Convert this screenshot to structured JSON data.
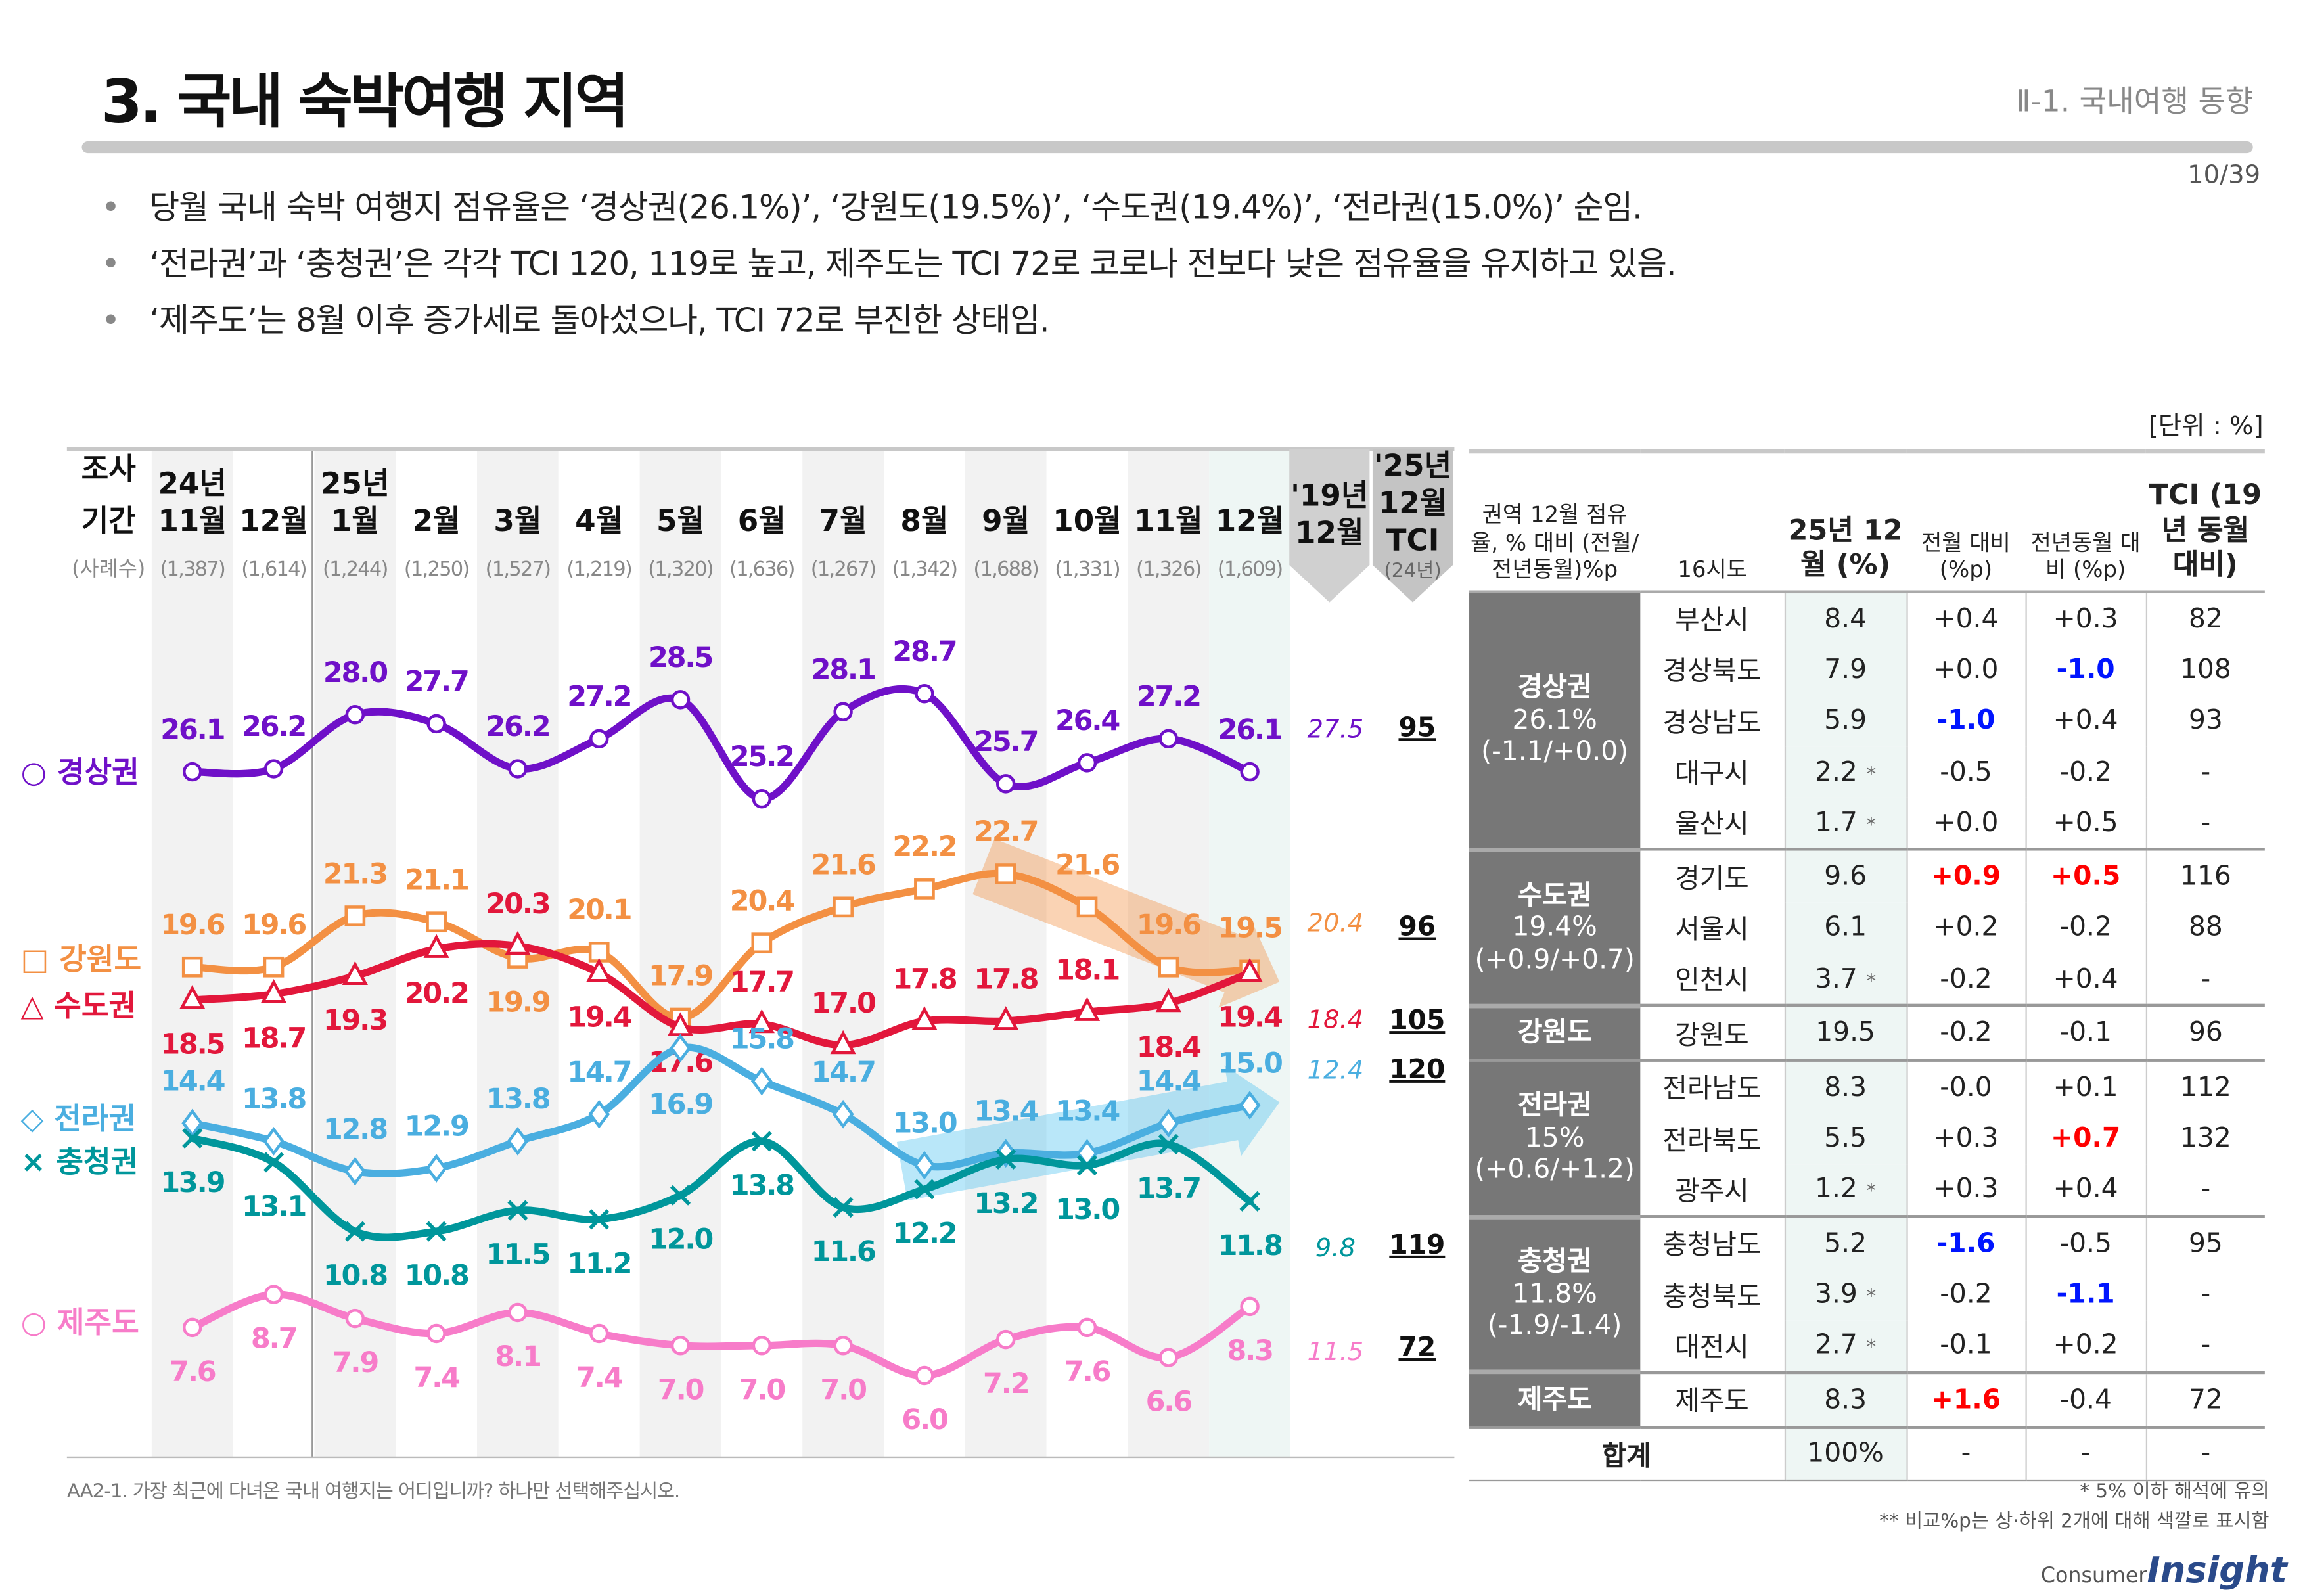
{
  "header": {
    "title": "3. 국내 숙박여행 지역",
    "section": "Ⅱ-1. 국내여행 동향",
    "page": "10/39"
  },
  "bullets": [
    "당월 국내 숙박 여행지 점유율은 ‘경상권(26.1%)’, ‘강원도(19.5%)’, ‘수도권(19.4%)’, ‘전라권(15.0%)’ 순임.",
    "‘전라권’과 ‘충청권’은 각각 TCI 120, 119로 높고, 제주도는 TCI 72로 코로나 전보다 낮은 점유율을 유지하고 있음.",
    "‘제주도’는 8월 이후 증가세로 돌아섰으나, TCI 72로 부진한 상태임."
  ],
  "unit": "[단위 : %]",
  "chart_data": {
    "type": "line",
    "period_label_1": "조사",
    "period_label_2": "기간",
    "sample_label": "(사례수)",
    "year_labels": [
      {
        "col": 0,
        "text": "24년"
      },
      {
        "col": 2,
        "text": "25년"
      }
    ],
    "categories": [
      "11월",
      "12월",
      "1월",
      "2월",
      "3월",
      "4월",
      "5월",
      "6월",
      "7월",
      "8월",
      "9월",
      "10월",
      "11월",
      "12월"
    ],
    "sample_sizes": [
      "(1,387)",
      "(1,614)",
      "(1,244)",
      "(1,250)",
      "(1,527)",
      "(1,219)",
      "(1,320)",
      "(1,636)",
      "(1,267)",
      "(1,342)",
      "(1,688)",
      "(1,331)",
      "(1,326)",
      "(1,609)"
    ],
    "ref_col_label": [
      "'19년",
      "12월"
    ],
    "tci_col_label": [
      "'25년",
      "12월",
      "TCI"
    ],
    "tci_col_note": "(24년)",
    "series": [
      {
        "name": "경상권",
        "symbol": "○",
        "marker": "circle",
        "color": "#6f10c8",
        "values": [
          26.1,
          26.2,
          28.0,
          27.7,
          26.2,
          27.2,
          28.5,
          25.2,
          28.1,
          28.7,
          25.7,
          26.4,
          27.2,
          26.1
        ],
        "ref_2019": "27.5",
        "tci": "95"
      },
      {
        "name": "강원도",
        "symbol": "□",
        "marker": "square",
        "color": "#f39043",
        "values": [
          19.6,
          19.6,
          21.3,
          21.1,
          19.9,
          20.1,
          17.9,
          20.4,
          21.6,
          22.2,
          22.7,
          21.6,
          19.6,
          19.5
        ],
        "ref_2019": "20.4",
        "tci": "96"
      },
      {
        "name": "수도권",
        "symbol": "△",
        "marker": "triangle",
        "color": "#e2173b",
        "values": [
          18.5,
          18.7,
          19.3,
          20.2,
          20.3,
          19.4,
          17.6,
          17.7,
          17.0,
          17.8,
          17.8,
          18.1,
          18.4,
          19.4
        ],
        "ref_2019": "18.4",
        "tci": "105"
      },
      {
        "name": "전라권",
        "symbol": "◇",
        "marker": "diamond",
        "color": "#4aaee0",
        "values": [
          14.4,
          13.8,
          12.8,
          12.9,
          13.8,
          14.7,
          16.9,
          15.8,
          14.7,
          13.0,
          13.4,
          13.4,
          14.4,
          15.0
        ],
        "ref_2019": "12.4",
        "tci": "120"
      },
      {
        "name": "충청권",
        "symbol": "×",
        "marker": "x",
        "color": "#00969b",
        "values": [
          13.9,
          13.1,
          10.8,
          10.8,
          11.5,
          11.2,
          12.0,
          13.8,
          11.6,
          12.2,
          13.2,
          13.0,
          13.7,
          11.8
        ],
        "ref_2019": "9.8",
        "tci": "119"
      },
      {
        "name": "제주도",
        "symbol": "○",
        "marker": "circle",
        "color": "#f77cc9",
        "values": [
          7.6,
          8.7,
          7.9,
          7.4,
          8.1,
          7.4,
          7.0,
          7.0,
          7.0,
          6.0,
          7.2,
          7.6,
          6.6,
          8.3
        ],
        "ref_2019": "11.5",
        "tci": "72"
      }
    ],
    "trend_arrows": [
      {
        "series": "강원도",
        "from": "9월",
        "to": "12월",
        "direction": "down",
        "color": "#f39043"
      },
      {
        "series": "전라권",
        "from": "8월",
        "to": "12월",
        "direction": "up",
        "color": "#4fc3f0"
      }
    ]
  },
  "table": {
    "headers": [
      "권역 12월 점유율, % 대비 (전월/ 전년동월)%p",
      "16시도",
      "25년 12월 (%)",
      "전월 대비 (%p)",
      "전년동월 대비 (%p)",
      "TCI (19년 동월 대비)"
    ],
    "groups": [
      {
        "label": [
          "경상권",
          "26.1%",
          "(-1.1/+0.0)"
        ],
        "rows": [
          {
            "city": "부산시",
            "share": "8.4",
            "star": "",
            "mom": "+0.4",
            "yoy": "+0.3",
            "tci": "82"
          },
          {
            "city": "경상북도",
            "share": "7.9",
            "star": "",
            "mom": "+0.0",
            "yoy": "-1.0",
            "yoy_hl": "blue",
            "tci": "108"
          },
          {
            "city": "경상남도",
            "share": "5.9",
            "star": "",
            "mom": "-1.0",
            "mom_hl": "blue",
            "yoy": "+0.4",
            "tci": "93"
          },
          {
            "city": "대구시",
            "share": "2.2",
            "star": "*",
            "mom": "-0.5",
            "yoy": "-0.2",
            "tci": "-"
          },
          {
            "city": "울산시",
            "share": "1.7",
            "star": "*",
            "mom": "+0.0",
            "yoy": "+0.5",
            "tci": "-"
          }
        ]
      },
      {
        "label": [
          "수도권",
          "19.4%",
          "(+0.9/+0.7)"
        ],
        "rows": [
          {
            "city": "경기도",
            "share": "9.6",
            "star": "",
            "mom": "+0.9",
            "mom_hl": "red",
            "yoy": "+0.5",
            "yoy_hl": "red",
            "tci": "116"
          },
          {
            "city": "서울시",
            "share": "6.1",
            "star": "",
            "mom": "+0.2",
            "yoy": "-0.2",
            "tci": "88"
          },
          {
            "city": "인천시",
            "share": "3.7",
            "star": "*",
            "mom": "-0.2",
            "yoy": "+0.4",
            "tci": "-"
          }
        ]
      },
      {
        "label": [
          "강원도"
        ],
        "rows": [
          {
            "city": "강원도",
            "share": "19.5",
            "star": "",
            "mom": "-0.2",
            "yoy": "-0.1",
            "tci": "96"
          }
        ]
      },
      {
        "label": [
          "전라권",
          "15%",
          "(+0.6/+1.2)"
        ],
        "rows": [
          {
            "city": "전라남도",
            "share": "8.3",
            "star": "",
            "mom": "-0.0",
            "yoy": "+0.1",
            "tci": "112"
          },
          {
            "city": "전라북도",
            "share": "5.5",
            "star": "",
            "mom": "+0.3",
            "yoy": "+0.7",
            "yoy_hl": "red",
            "tci": "132"
          },
          {
            "city": "광주시",
            "share": "1.2",
            "star": "*",
            "mom": "+0.3",
            "yoy": "+0.4",
            "tci": "-"
          }
        ]
      },
      {
        "label": [
          "충청권",
          "11.8%",
          "(-1.9/-1.4)"
        ],
        "rows": [
          {
            "city": "충청남도",
            "share": "5.2",
            "star": "",
            "mom": "-1.6",
            "mom_hl": "blue",
            "yoy": "-0.5",
            "tci": "95"
          },
          {
            "city": "충청북도",
            "share": "3.9",
            "star": "*",
            "mom": "-0.2",
            "yoy": "-1.1",
            "yoy_hl": "blue",
            "tci": "-"
          },
          {
            "city": "대전시",
            "share": "2.7",
            "star": "*",
            "mom": "-0.1",
            "yoy": "+0.2",
            "tci": "-"
          }
        ]
      },
      {
        "label": [
          "제주도"
        ],
        "rows": [
          {
            "city": "제주도",
            "share": "8.3",
            "star": "",
            "mom": "+1.6",
            "mom_hl": "red",
            "yoy": "-0.4",
            "tci": "72"
          }
        ]
      }
    ],
    "total": {
      "label": "합계",
      "share": "100%",
      "mom": "-",
      "yoy": "-",
      "tci": "-"
    }
  },
  "footnotes": {
    "question": "AA2-1. 가장 최근에 다녀온 국내 여행지는 어디입니까? 하나만 선택해주십시오.",
    "note1": "* 5% 이하 해석에 유의",
    "note2": "** 비교%p는 상·하위 2개에 대해 색깔로 표시함"
  },
  "logo": {
    "small": "Consumer",
    "big": "Insight"
  }
}
